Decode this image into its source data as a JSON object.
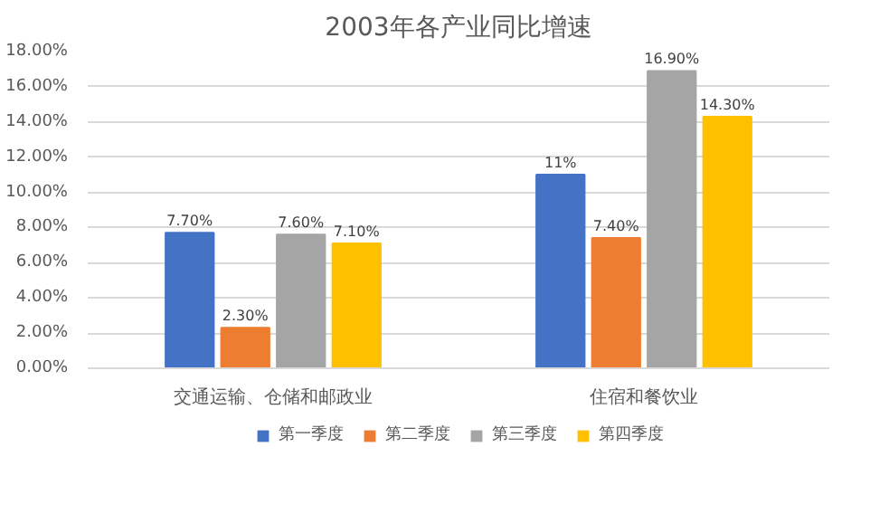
{
  "chart_data": {
    "type": "bar",
    "title": "2003年各产业同比增速",
    "categories": [
      "交通运输、仓储和邮政业",
      "住宿和餐饮业"
    ],
    "series": [
      {
        "name": "第一季度",
        "color": "#4472c4",
        "values": [
          7.7,
          11
        ],
        "value_labels": [
          "7.70%",
          "11%"
        ]
      },
      {
        "name": "第二季度",
        "color": "#ed7d31",
        "values": [
          2.3,
          7.4
        ],
        "value_labels": [
          "2.30%",
          "7.40%"
        ]
      },
      {
        "name": "第三季度",
        "color": "#a5a5a5",
        "values": [
          7.6,
          16.9
        ],
        "value_labels": [
          "7.60%",
          "16.90%"
        ]
      },
      {
        "name": "第四季度",
        "color": "#ffc000",
        "values": [
          7.1,
          14.3
        ],
        "value_labels": [
          "7.10%",
          "14.30%"
        ]
      }
    ],
    "ylim": [
      0,
      18
    ],
    "yticks": [
      {
        "value": 0,
        "label": "0.00%"
      },
      {
        "value": 2,
        "label": "2.00%"
      },
      {
        "value": 4,
        "label": "4.00%"
      },
      {
        "value": 6,
        "label": "6.00%"
      },
      {
        "value": 8,
        "label": "8.00%"
      },
      {
        "value": 10,
        "label": "10.00%"
      },
      {
        "value": 12,
        "label": "12.00%"
      },
      {
        "value": 14,
        "label": "14.00%"
      },
      {
        "value": 16,
        "label": "16.00%"
      },
      {
        "value": 18,
        "label": "18.00%"
      }
    ],
    "grid": "y",
    "legend": "bottom"
  }
}
